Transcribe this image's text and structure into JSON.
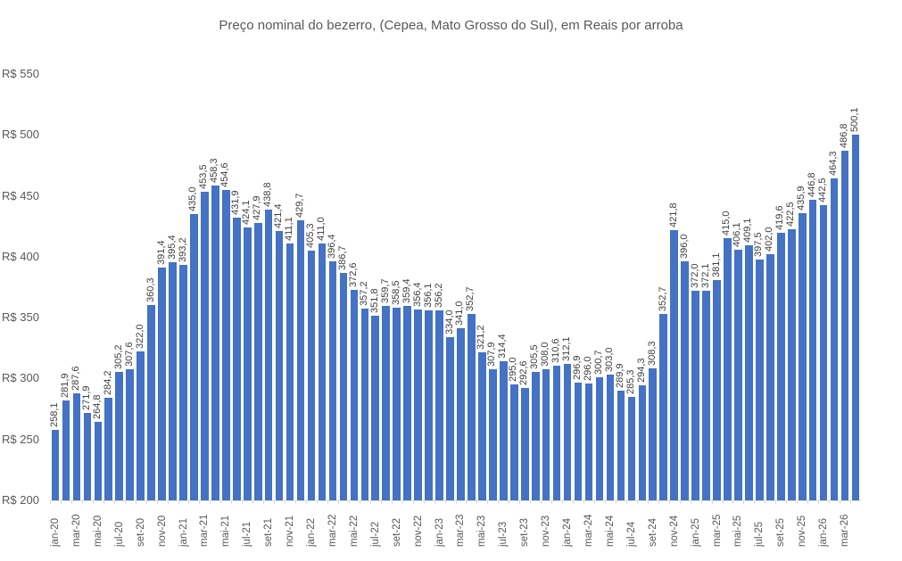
{
  "chart_data": {
    "type": "bar",
    "title": "Preço nominal do bezerro, (Cepea, Mato Grosso do Sul), em Reais por arroba",
    "xlabel": "",
    "ylabel": "",
    "ylim": [
      200,
      550
    ],
    "yticks": [
      "R$ 200",
      "R$ 250",
      "R$ 300",
      "R$ 350",
      "R$ 400",
      "R$ 450",
      "R$ 500",
      "R$ 550"
    ],
    "ytick_values": [
      200,
      250,
      300,
      350,
      400,
      450,
      500,
      550
    ],
    "grid": false,
    "legend": null,
    "bar_color": "#4472C4",
    "categories": [
      "jan-20",
      "fev-20",
      "mar-20",
      "abr-20",
      "mai-20",
      "jun-20",
      "jul-20",
      "ago-20",
      "set-20",
      "out-20",
      "nov-20",
      "dez-20",
      "jan-21",
      "fev-21",
      "mar-21",
      "abr-21",
      "mai-21",
      "jun-21",
      "jul-21",
      "ago-21",
      "set-21",
      "out-21",
      "nov-21",
      "dez-21",
      "jan-22",
      "fev-22",
      "mar-22",
      "abr-22",
      "mai-22",
      "jun-22",
      "jul-22",
      "ago-22",
      "set-22",
      "out-22",
      "nov-22",
      "dez-22",
      "jan-23",
      "fev-23",
      "mar-23",
      "abr-23",
      "mai-23",
      "jun-23",
      "jul-23",
      "ago-23",
      "set-23",
      "out-23",
      "nov-23",
      "dez-23",
      "jan-24",
      "fev-24",
      "mar-24",
      "abr-24",
      "mai-24",
      "jun-24",
      "jul-24",
      "ago-24",
      "set-24",
      "out-24",
      "nov-24",
      "dez-24",
      "jan-25",
      "fev-25",
      "mar-25",
      "abr-25",
      "mai-25",
      "jun-25",
      "jul-25",
      "ago-25",
      "set-25",
      "out-25",
      "nov-25",
      "dez-25",
      "jan-26",
      "fev-26",
      "mar-26",
      "abr-26"
    ],
    "visible_xtick_labels": [
      "jan-20",
      "mar-20",
      "mai-20",
      "jul-20",
      "set-20",
      "nov-20",
      "jan-21",
      "mar-21",
      "mai-21",
      "jul-21",
      "set-21",
      "nov-21",
      "jan-22",
      "mar-22",
      "mai-22",
      "jul-22",
      "set-22",
      "nov-22",
      "jan-23",
      "mar-23",
      "mai-23",
      "jul-23",
      "set-23",
      "nov-23",
      "jan-24",
      "mar-24",
      "mai-24",
      "jul-24",
      "set-24",
      "nov-24",
      "jan-25",
      "mar-25",
      "mai-25",
      "jul-25",
      "set-25",
      "nov-25",
      "jan-26",
      "mar-26"
    ],
    "values": [
      258.1,
      281.9,
      287.6,
      271.9,
      264.8,
      284.2,
      305.2,
      307.6,
      322.0,
      360.3,
      391.4,
      395.4,
      393.2,
      435.0,
      453.5,
      458.3,
      454.6,
      431.9,
      424.1,
      427.9,
      438.8,
      421.4,
      411.1,
      429.7,
      405.3,
      411.0,
      396.4,
      386.7,
      372.6,
      357.2,
      351.8,
      359.7,
      358.5,
      359.4,
      356.4,
      356.1,
      356.2,
      334.0,
      341.0,
      352.7,
      321.2,
      307.9,
      314.4,
      295.0,
      292.6,
      305.5,
      308.0,
      310.6,
      312.1,
      296.9,
      296.0,
      300.7,
      303.0,
      289.9,
      285.3,
      294.3,
      308.3,
      352.7,
      421.8,
      396.0,
      372.0,
      372.1,
      381.1,
      415.0,
      406.1,
      409.1,
      397.5,
      402.0,
      419.6,
      422.5,
      435.9,
      446.8,
      442.5,
      464.3,
      486.8,
      500.1
    ],
    "data_labels": [
      "258,1",
      "281,9",
      "287,6",
      "271,9",
      "264,8",
      "284,2",
      "305,2",
      "307,6",
      "322,0",
      "360,3",
      "391,4",
      "395,4",
      "393,2",
      "435,0",
      "453,5",
      "458,3",
      "454,6",
      "431,9",
      "424,1",
      "427,9",
      "438,8",
      "421,4",
      "411,1",
      "429,7",
      "405,3",
      "411,0",
      "396,4",
      "386,7",
      "372,6",
      "357,2",
      "351,8",
      "359,7",
      "358,5",
      "359,4",
      "356,4",
      "356,1",
      "356,2",
      "334,0",
      "341,0",
      "352,7",
      "321,2",
      "307,9",
      "314,4",
      "295,0",
      "292,6",
      "305,5",
      "308,0",
      "310,6",
      "312,1",
      "296,9",
      "296,0",
      "300,7",
      "303,0",
      "289,9",
      "285,3",
      "294,3",
      "308,3",
      "352,7",
      "421,8",
      "396,0",
      "372,0",
      "372,1",
      "381,1",
      "415,0",
      "406,1",
      "409,1",
      "397,5",
      "402,0",
      "419,6",
      "422,5",
      "435,9",
      "446,8",
      "442,5",
      "464,3",
      "486,8",
      "500,1"
    ]
  }
}
